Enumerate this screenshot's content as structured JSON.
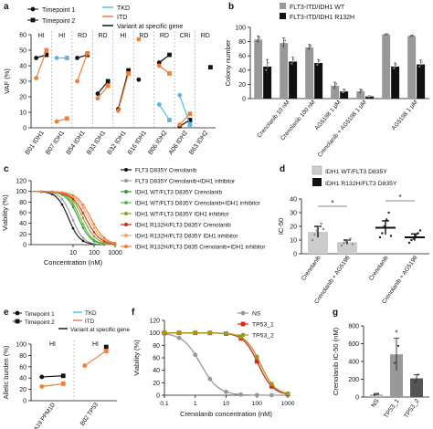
{
  "panel_labels": {
    "a": "a",
    "b": "b",
    "c": "c",
    "d": "d",
    "e": "e",
    "f": "f",
    "g": "g"
  },
  "colors": {
    "black": "#111111",
    "orange": "#ee7f35",
    "blue": "#5bb8e6",
    "red": "#d9251d",
    "green": "#2e9d2a",
    "peach": "#f0a868",
    "gray": "#999999",
    "darkgray": "#555555",
    "lightgray": "#bbbbbb",
    "olive": "#9b9b1c"
  },
  "chart_data": [
    {
      "id": "a",
      "type": "line",
      "ylabel": "VAF (%)",
      "ylim": [
        0,
        60
      ],
      "yticks": [
        0,
        10,
        20,
        30,
        40,
        50,
        60
      ],
      "legend": [
        "Timepoint 1",
        "Timepoint 2",
        "TKD",
        "ITD",
        "Variant at specific gene"
      ],
      "groups": [
        {
          "label": "HI",
          "samples": [
            "B01 IDH1"
          ]
        },
        {
          "label": "HI",
          "samples": [
            "B07 IDH1"
          ]
        },
        {
          "label": "RD",
          "samples": [
            "B54 IDH1"
          ]
        },
        {
          "label": "RD",
          "samples": [
            "B33 IDH1"
          ]
        },
        {
          "label": "HI",
          "samples": [
            "B32 IDH1"
          ]
        },
        {
          "label": "RD",
          "samples": [
            "B16 IDH1"
          ]
        },
        {
          "label": "RD",
          "samples": [
            "B06 IDH2"
          ]
        },
        {
          "label": "CRi",
          "samples": [
            "A08 IDH2"
          ]
        },
        {
          "label": "RD",
          "samples": [
            "B63 IDH2"
          ]
        }
      ],
      "series": [
        {
          "sample": "B01 IDH1",
          "gene": [
            45,
            47
          ],
          "itd": [
            32,
            50
          ],
          "tkd": null
        },
        {
          "sample": "B07 IDH1",
          "gene": null,
          "itd": [
            4,
            6
          ],
          "tkd": [
            45,
            45
          ]
        },
        {
          "sample": "B54 IDH1",
          "gene": [
            45,
            47
          ],
          "itd": [
            30,
            48
          ],
          "tkd": null
        },
        {
          "sample": "B33 IDH1",
          "gene": [
            22,
            30
          ],
          "itd": [
            19,
            27
          ],
          "tkd": null
        },
        {
          "sample": "B32 IDH1",
          "gene": [
            12,
            37
          ],
          "itd": [
            11,
            35
          ],
          "tkd": null
        },
        {
          "sample": "B16 IDH1",
          "gene": [
            31,
            null
          ],
          "itd": [
            57,
            null
          ],
          "tkd": null
        },
        {
          "sample": "B06 IDH2",
          "gene": [
            42,
            47
          ],
          "itd": [
            40,
            35
          ],
          "tkd": [
            15,
            5
          ]
        },
        {
          "sample": "A08 IDH2",
          "gene": [
            1,
            5
          ],
          "itd": [
            2,
            9
          ],
          "tkd": [
            21,
            2
          ]
        },
        {
          "sample": "B63 IDH2",
          "gene": [
            null,
            39
          ],
          "itd": null,
          "tkd": null
        }
      ]
    },
    {
      "id": "b",
      "type": "bar",
      "ylabel": "Colony number",
      "ylim": [
        0,
        100
      ],
      "yticks": [
        0,
        20,
        40,
        60,
        80,
        100
      ],
      "legend": [
        "FLT3-ITD/IDH1 WT",
        "FLT3-ITD/IDH1 R132H"
      ],
      "categories": [
        "",
        "Crenolanib 10 nM",
        "Crenolanib 100 nM",
        "AG5198 1 μM",
        "Crenolanib + AG5198 1 μM",
        "",
        "AG5198 1 μM"
      ],
      "series": [
        {
          "name": "FLT3-ITD/IDH1 WT",
          "values": [
            83,
            78,
            72,
            18,
            10,
            90,
            88
          ],
          "errors": [
            5,
            7,
            4,
            5,
            3,
            1,
            1
          ]
        },
        {
          "name": "FLT3-ITD/IDH1 R132H",
          "values": [
            45,
            52,
            50,
            10,
            3,
            45,
            48
          ],
          "errors": [
            10,
            6,
            5,
            3,
            1,
            5,
            6
          ]
        }
      ]
    },
    {
      "id": "c",
      "type": "line",
      "xlabel": "Concentration (nM)",
      "ylabel": "Viability (%)",
      "xscale": "log",
      "xlim": [
        0.1,
        1000
      ],
      "ylim": [
        0,
        120
      ],
      "xticks": [
        10,
        100,
        1000
      ],
      "yticks": [
        0,
        20,
        40,
        60,
        80,
        100,
        120
      ],
      "series": [
        {
          "name": "FLT3 D835Y Crenolanib",
          "color": "#111111",
          "ic50": 6,
          "hill": 1.6
        },
        {
          "name": "FLT3 D835Y Crenolanib+IDH1 inhibitor",
          "color": "#999999",
          "ic50": 9,
          "hill": 1.6
        },
        {
          "name": "IDH1 WT/FLT3 D835Y Crenolanib",
          "color": "#2e9d2a",
          "ic50": 18,
          "hill": 1.5
        },
        {
          "name": "IDH1 WT/FLT3 D835Y Crenolanib+IDH1 inhibitor",
          "color": "#5fb84c",
          "ic50": 22,
          "hill": 1.5
        },
        {
          "name": "IDH1 WT/FLT3 D835Y IDH1 inhibitor",
          "color": "#9b9b1c",
          "ic50": 30,
          "hill": 1.4
        },
        {
          "name": "IDH1 R132H/FLT3 D835Y Crenolanib",
          "color": "#d9251d",
          "ic50": 40,
          "hill": 1.3
        },
        {
          "name": "IDH1 R132H/FLT3 D835Y IDH1 inhibitor",
          "color": "#f0a868",
          "ic50": 55,
          "hill": 1.3
        },
        {
          "name": "IDH1 R132H/FLT3 D835 Crenolanib+IDH1 inhibitor",
          "color": "#ee7f35",
          "ic50": 70,
          "hill": 1.3
        }
      ]
    },
    {
      "id": "d",
      "type": "bar",
      "ylabel": "IC-50",
      "ylim": [
        0,
        40
      ],
      "yticks": [
        0,
        10,
        20,
        30,
        40
      ],
      "legend": [
        "IDH1 WT/FLT3 D835Y",
        "IDH1 R132H/FLT3 D835Y"
      ],
      "categories": [
        "Crenolanib",
        "Crenolanib + AG5198",
        "Crenolanib",
        "Crenolanib + AG5198"
      ],
      "values": [
        16,
        8.5,
        19,
        12
      ],
      "errors": [
        4,
        1.5,
        5,
        2.5
      ],
      "bar_colors": [
        "#cccccc",
        "#cccccc",
        "#111111",
        "#111111"
      ],
      "points": [
        [
          10,
          14,
          17,
          20,
          22,
          18
        ],
        [
          6,
          8,
          9,
          10,
          11,
          7
        ],
        [
          12,
          15,
          20,
          25,
          30,
          13
        ],
        [
          8,
          10,
          11,
          13,
          15,
          17
        ]
      ],
      "significance": [
        "*",
        "*"
      ]
    },
    {
      "id": "e",
      "type": "line",
      "ylabel": "Allelic burden (%)",
      "ylim": [
        0,
        100
      ],
      "yticks": [
        0,
        20,
        40,
        60,
        80,
        100
      ],
      "legend": [
        "Timepoint 1",
        "Timepoint 2",
        "TKD",
        "ITD",
        "Variant at specific gene"
      ],
      "groups": [
        {
          "label": "HI",
          "samples": [
            "A19 PPM1D"
          ]
        },
        {
          "label": "HI",
          "samples": [
            "B02 TP53"
          ]
        }
      ],
      "series": [
        {
          "sample": "A19 PPM1D",
          "gene": [
            42,
            44
          ],
          "itd": [
            25,
            30
          ],
          "tkd": null
        },
        {
          "sample": "B02 TP53",
          "gene": [
            null,
            95
          ],
          "itd": [
            62,
            88
          ],
          "tkd": null
        }
      ]
    },
    {
      "id": "f",
      "type": "line",
      "xlabel": "Crenolanib concentration (nM)",
      "ylabel": "Viability (%)",
      "xscale": "log",
      "xlim": [
        0.1,
        1000
      ],
      "ylim": [
        0,
        120
      ],
      "xticks": [
        0.1,
        1,
        10,
        100,
        1000
      ],
      "yticks": [
        0,
        20,
        40,
        60,
        80,
        100,
        120
      ],
      "series": [
        {
          "name": "NS",
          "color": "#999999",
          "ic50": 1.5,
          "hill": 1.5
        },
        {
          "name": "TP53_1",
          "color": "#d9251d",
          "ic50": 110,
          "hill": 1.8
        },
        {
          "name": "TP53_2",
          "color": "#9b9b1c",
          "ic50": 130,
          "hill": 1.8
        }
      ]
    },
    {
      "id": "g",
      "type": "bar",
      "ylabel": "Crenolanib IC-50 (nM)",
      "ylim": [
        0,
        800
      ],
      "yticks": [
        0,
        200,
        400,
        600,
        800
      ],
      "categories": [
        "NS",
        "TP53_1",
        "TP53_2"
      ],
      "values": [
        30,
        480,
        210
      ],
      "errors": [
        10,
        180,
        40
      ],
      "bar_colors": [
        "#bbbbbb",
        "#999999",
        "#555555"
      ],
      "significance": [
        "*"
      ]
    }
  ]
}
